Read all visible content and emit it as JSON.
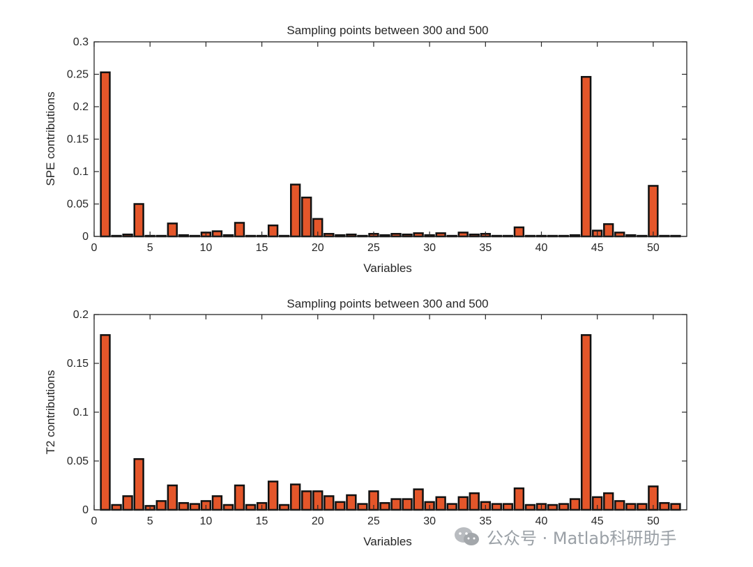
{
  "colors": {
    "bar_fill": "#e4562a",
    "bar_edge": "#111111"
  },
  "watermark": {
    "text": "公众号 · Matlab科研助手",
    "icon": "wechat-icon"
  },
  "chart_data": [
    {
      "type": "bar",
      "title": "Sampling points between 300 and 500",
      "xlabel": "Variables",
      "ylabel": "SPE contributions",
      "xlim": [
        0,
        53
      ],
      "ylim": [
        0,
        0.3
      ],
      "xticks": [
        0,
        5,
        10,
        15,
        20,
        25,
        30,
        35,
        40,
        45,
        50
      ],
      "yticks": [
        0,
        0.05,
        0.1,
        0.15,
        0.2,
        0.25,
        0.3
      ],
      "ytick_labels": [
        "0",
        "0.05",
        "0.1",
        "0.15",
        "0.2",
        "0.25",
        "0.3"
      ],
      "x": [
        1,
        2,
        3,
        4,
        5,
        6,
        7,
        8,
        9,
        10,
        11,
        12,
        13,
        14,
        15,
        16,
        17,
        18,
        19,
        20,
        21,
        22,
        23,
        24,
        25,
        26,
        27,
        28,
        29,
        30,
        31,
        32,
        33,
        34,
        35,
        36,
        37,
        38,
        39,
        40,
        41,
        42,
        43,
        44,
        45,
        46,
        47,
        48,
        49,
        50,
        51,
        52
      ],
      "values": [
        0.253,
        0.001,
        0.003,
        0.05,
        0.001,
        0.001,
        0.02,
        0.002,
        0.001,
        0.006,
        0.008,
        0.002,
        0.021,
        0.001,
        0.001,
        0.017,
        0.001,
        0.08,
        0.06,
        0.027,
        0.004,
        0.002,
        0.003,
        0.001,
        0.004,
        0.002,
        0.004,
        0.003,
        0.005,
        0.002,
        0.005,
        0.001,
        0.006,
        0.003,
        0.004,
        0.001,
        0.001,
        0.014,
        0.001,
        0.001,
        0.001,
        0.001,
        0.002,
        0.246,
        0.009,
        0.019,
        0.006,
        0.002,
        0.001,
        0.078,
        0.001,
        0.001
      ]
    },
    {
      "type": "bar",
      "title": "Sampling points between 300 and 500",
      "xlabel": "Variables",
      "ylabel": "T2 contributions",
      "xlim": [
        0,
        53
      ],
      "ylim": [
        0,
        0.2
      ],
      "xticks": [
        0,
        5,
        10,
        15,
        20,
        25,
        30,
        35,
        40,
        45,
        50
      ],
      "yticks": [
        0,
        0.05,
        0.1,
        0.15,
        0.2
      ],
      "ytick_labels": [
        "0",
        "0.05",
        "0.1",
        "0.15",
        "0.2"
      ],
      "x": [
        1,
        2,
        3,
        4,
        5,
        6,
        7,
        8,
        9,
        10,
        11,
        12,
        13,
        14,
        15,
        16,
        17,
        18,
        19,
        20,
        21,
        22,
        23,
        24,
        25,
        26,
        27,
        28,
        29,
        30,
        31,
        32,
        33,
        34,
        35,
        36,
        37,
        38,
        39,
        40,
        41,
        42,
        43,
        44,
        45,
        46,
        47,
        48,
        49,
        50,
        51,
        52
      ],
      "values": [
        0.179,
        0.005,
        0.014,
        0.052,
        0.004,
        0.009,
        0.025,
        0.007,
        0.006,
        0.009,
        0.014,
        0.005,
        0.025,
        0.005,
        0.007,
        0.029,
        0.005,
        0.026,
        0.019,
        0.019,
        0.014,
        0.008,
        0.015,
        0.006,
        0.019,
        0.007,
        0.011,
        0.011,
        0.021,
        0.008,
        0.013,
        0.006,
        0.013,
        0.017,
        0.008,
        0.006,
        0.006,
        0.022,
        0.005,
        0.006,
        0.005,
        0.006,
        0.011,
        0.179,
        0.013,
        0.017,
        0.009,
        0.006,
        0.006,
        0.024,
        0.007,
        0.006
      ]
    }
  ]
}
